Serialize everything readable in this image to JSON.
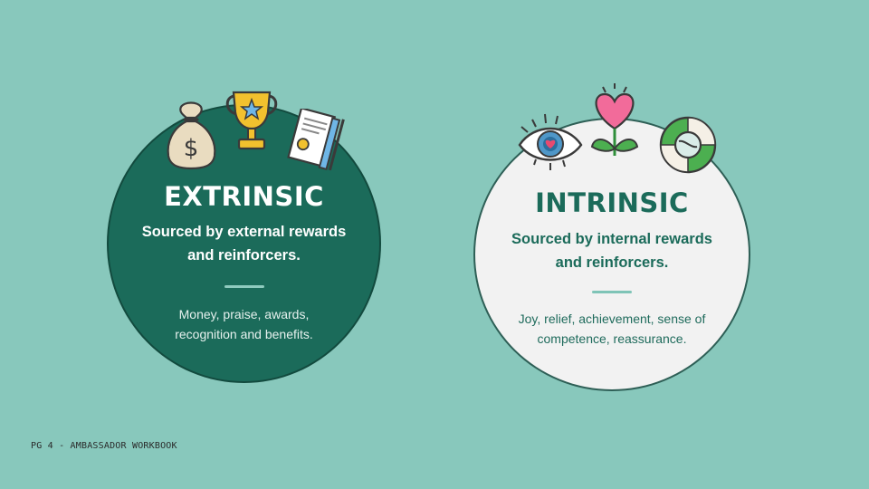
{
  "colors": {
    "background": "#88c8bc",
    "extrinsic_circle": "#1b6b5a",
    "intrinsic_circle": "#f2f2f2",
    "accent_text": "#1b6b5a"
  },
  "extrinsic": {
    "title": "EXTRINSIC",
    "subtitle_line1": "Sourced by external rewards",
    "subtitle_line2": "and reinforcers.",
    "detail_line1": "Money, praise, awards,",
    "detail_line2": "recognition and benefits.",
    "icons": [
      "money-bag-icon",
      "trophy-icon",
      "certificate-icon"
    ]
  },
  "intrinsic": {
    "title": "INTRINSIC",
    "subtitle_line1": "Sourced by internal rewards",
    "subtitle_line2": "and reinforcers.",
    "detail_line1": "Joy, relief, achievement, sense of",
    "detail_line2": "competence, reassurance.",
    "icons": [
      "eye-heart-icon",
      "heart-flower-icon",
      "lifebuoy-icon"
    ]
  },
  "footer": {
    "text": "PG 4 - AMBASSADOR WORKBOOK"
  }
}
